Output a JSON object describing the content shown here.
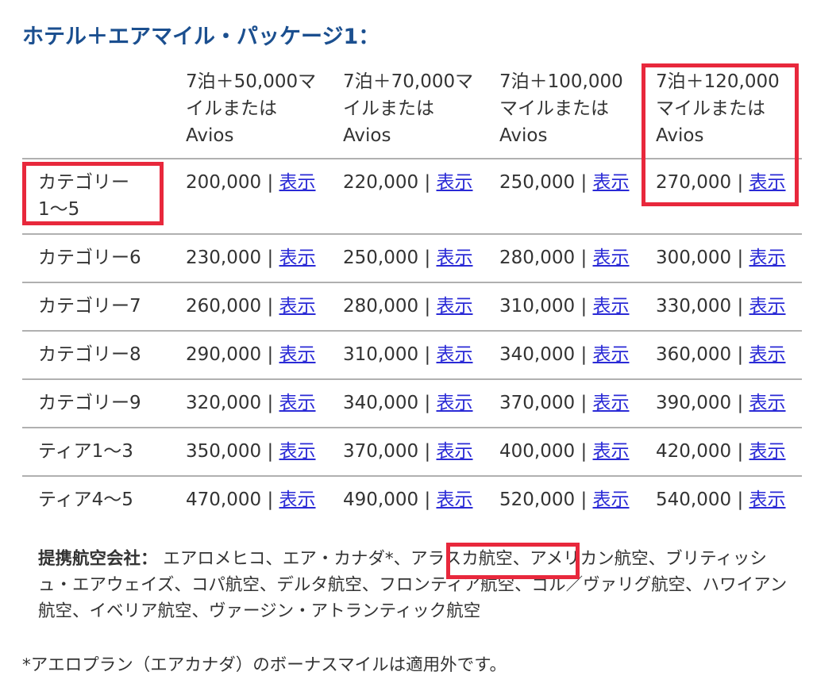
{
  "title": "ホテル＋エアマイル・パッケージ1：",
  "table": {
    "separator": "|",
    "headers": [
      [
        "7泊＋50,000マ",
        "イルまたは",
        "Avios"
      ],
      [
        "7泊＋70,000マ",
        "イルまたは",
        "Avios"
      ],
      [
        "7泊＋100,000",
        "マイルまたは",
        "Avios"
      ],
      [
        "7泊＋120,000",
        "マイルまたは",
        "Avios"
      ]
    ],
    "rows": [
      {
        "label": [
          "カテゴリー",
          "1〜5"
        ],
        "cells": [
          {
            "value": "200,000",
            "link": "表示"
          },
          {
            "value": "220,000",
            "link": "表示"
          },
          {
            "value": "250,000",
            "link": "表示"
          },
          {
            "value": "270,000",
            "link": "表示"
          }
        ]
      },
      {
        "label": [
          "カテゴリー6"
        ],
        "cells": [
          {
            "value": "230,000",
            "link": "表示"
          },
          {
            "value": "250,000",
            "link": "表示"
          },
          {
            "value": "280,000",
            "link": "表示"
          },
          {
            "value": "300,000",
            "link": "表示"
          }
        ]
      },
      {
        "label": [
          "カテゴリー7"
        ],
        "cells": [
          {
            "value": "260,000",
            "link": "表示"
          },
          {
            "value": "280,000",
            "link": "表示"
          },
          {
            "value": "310,000",
            "link": "表示"
          },
          {
            "value": "330,000",
            "link": "表示"
          }
        ]
      },
      {
        "label": [
          "カテゴリー8"
        ],
        "cells": [
          {
            "value": "290,000",
            "link": "表示"
          },
          {
            "value": "310,000",
            "link": "表示"
          },
          {
            "value": "340,000",
            "link": "表示"
          },
          {
            "value": "360,000",
            "link": "表示"
          }
        ]
      },
      {
        "label": [
          "カテゴリー9"
        ],
        "cells": [
          {
            "value": "320,000",
            "link": "表示"
          },
          {
            "value": "340,000",
            "link": "表示"
          },
          {
            "value": "370,000",
            "link": "表示"
          },
          {
            "value": "390,000",
            "link": "表示"
          }
        ]
      },
      {
        "label": [
          "ティア1〜3"
        ],
        "cells": [
          {
            "value": "350,000",
            "link": "表示"
          },
          {
            "value": "370,000",
            "link": "表示"
          },
          {
            "value": "400,000",
            "link": "表示"
          },
          {
            "value": "420,000",
            "link": "表示"
          }
        ]
      },
      {
        "label": [
          "ティア4〜5"
        ],
        "cells": [
          {
            "value": "470,000",
            "link": "表示"
          },
          {
            "value": "490,000",
            "link": "表示"
          },
          {
            "value": "520,000",
            "link": "表示"
          },
          {
            "value": "540,000",
            "link": "表示"
          }
        ]
      }
    ]
  },
  "partners": {
    "label": "提携航空会社：",
    "before": "エアロメヒコ、エア・カナダ*、",
    "highlight": "アラスカ航空、",
    "after": "アメリカン航空、ブリティッシュ・エアウェイズ、コパ航空、デルタ航空、フロンティア航空、ゴル／ヴァリグ航空、ハワイアン航空、イベリア航空、ヴァージン・アトランティック航空"
  },
  "note": "*アエロプラン（エアカナダ）のボーナスマイルは適用外です。"
}
